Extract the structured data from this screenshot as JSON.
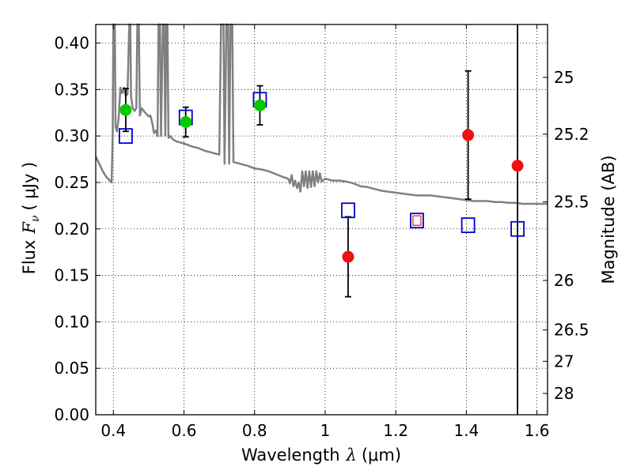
{
  "chart_data": {
    "type": "scatter",
    "xlabel": "Wavelength",
    "xlabel_symbol": "λ",
    "xlabel_unit": "(μm)",
    "ylabel": "Flux",
    "ylabel_symbol": "F",
    "ylabel_subscript": "ν",
    "ylabel_unit": "( μJy )",
    "y2label": "Magnitude (AB)",
    "xlim": [
      0.35,
      1.63
    ],
    "ylim": [
      0.0,
      0.42
    ],
    "grid": true,
    "grid_style": "dotted",
    "x_ticks": [
      0.4,
      0.6,
      0.8,
      1.0,
      1.2,
      1.4,
      1.6
    ],
    "x_tick_labels": [
      "0.4",
      "0.6",
      "0.8",
      "1",
      "1.2",
      "1.4",
      "1.6"
    ],
    "y_ticks": [
      0.0,
      0.05,
      0.1,
      0.15,
      0.2,
      0.25,
      0.3,
      0.35,
      0.4
    ],
    "y_tick_labels": [
      "0.00",
      "0.05",
      "0.10",
      "0.15",
      "0.20",
      "0.25",
      "0.30",
      "0.35",
      "0.40"
    ],
    "y2_ticks": [
      {
        "mag": 25,
        "label": "25"
      },
      {
        "mag": 25.2,
        "label": "25.2"
      },
      {
        "mag": 25.5,
        "label": "25.5"
      },
      {
        "mag": 26,
        "label": "26"
      },
      {
        "mag": 26.5,
        "label": "26.5"
      },
      {
        "mag": 27,
        "label": "27"
      },
      {
        "mag": 28,
        "label": "28"
      }
    ],
    "vertical_line_x": 1.545,
    "colors": {
      "model": "#808080",
      "model_points": "#0000cc",
      "optical_obs": "#00cc00",
      "ir_obs": "#ee1111",
      "errorbar": "#000000",
      "inner_square": "#ee1111"
    },
    "model_spectrum": [
      [
        0.35,
        0.278
      ],
      [
        0.36,
        0.27
      ],
      [
        0.37,
        0.262
      ],
      [
        0.38,
        0.256
      ],
      [
        0.39,
        0.252
      ],
      [
        0.395,
        0.25
      ],
      [
        0.398,
        0.3
      ],
      [
        0.4,
        0.42
      ],
      [
        0.404,
        0.42
      ],
      [
        0.406,
        0.31
      ],
      [
        0.41,
        0.305
      ],
      [
        0.415,
        0.32
      ],
      [
        0.42,
        0.352
      ],
      [
        0.425,
        0.346
      ],
      [
        0.43,
        0.352
      ],
      [
        0.435,
        0.343
      ],
      [
        0.44,
        0.345
      ],
      [
        0.445,
        0.42
      ],
      [
        0.448,
        0.42
      ],
      [
        0.45,
        0.342
      ],
      [
        0.455,
        0.33
      ],
      [
        0.46,
        0.327
      ],
      [
        0.465,
        0.33
      ],
      [
        0.468,
        0.42
      ],
      [
        0.472,
        0.42
      ],
      [
        0.475,
        0.322
      ],
      [
        0.48,
        0.33
      ],
      [
        0.49,
        0.325
      ],
      [
        0.5,
        0.321
      ],
      [
        0.505,
        0.322
      ],
      [
        0.51,
        0.314
      ],
      [
        0.515,
        0.303
      ],
      [
        0.52,
        0.306
      ],
      [
        0.525,
        0.3
      ],
      [
        0.528,
        0.42
      ],
      [
        0.532,
        0.42
      ],
      [
        0.535,
        0.3
      ],
      [
        0.54,
        0.42
      ],
      [
        0.544,
        0.42
      ],
      [
        0.547,
        0.3
      ],
      [
        0.55,
        0.42
      ],
      [
        0.553,
        0.42
      ],
      [
        0.556,
        0.298
      ],
      [
        0.56,
        0.3
      ],
      [
        0.57,
        0.296
      ],
      [
        0.58,
        0.294
      ],
      [
        0.6,
        0.292
      ],
      [
        0.62,
        0.289
      ],
      [
        0.64,
        0.287
      ],
      [
        0.66,
        0.284
      ],
      [
        0.68,
        0.282
      ],
      [
        0.7,
        0.28
      ],
      [
        0.705,
        0.42
      ],
      [
        0.712,
        0.42
      ],
      [
        0.715,
        0.27
      ],
      [
        0.72,
        0.42
      ],
      [
        0.725,
        0.42
      ],
      [
        0.728,
        0.27
      ],
      [
        0.732,
        0.42
      ],
      [
        0.737,
        0.42
      ],
      [
        0.74,
        0.272
      ],
      [
        0.76,
        0.27
      ],
      [
        0.78,
        0.268
      ],
      [
        0.8,
        0.265
      ],
      [
        0.82,
        0.264
      ],
      [
        0.84,
        0.262
      ],
      [
        0.86,
        0.259
      ],
      [
        0.88,
        0.256
      ],
      [
        0.895,
        0.254
      ],
      [
        0.9,
        0.249
      ],
      [
        0.905,
        0.258
      ],
      [
        0.91,
        0.246
      ],
      [
        0.915,
        0.252
      ],
      [
        0.92,
        0.244
      ],
      [
        0.925,
        0.25
      ],
      [
        0.93,
        0.24
      ],
      [
        0.935,
        0.262
      ],
      [
        0.94,
        0.246
      ],
      [
        0.945,
        0.262
      ],
      [
        0.95,
        0.244
      ],
      [
        0.955,
        0.262
      ],
      [
        0.96,
        0.245
      ],
      [
        0.965,
        0.262
      ],
      [
        0.97,
        0.246
      ],
      [
        0.975,
        0.262
      ],
      [
        0.98,
        0.25
      ],
      [
        0.985,
        0.26
      ],
      [
        0.99,
        0.251
      ],
      [
        1.0,
        0.254
      ],
      [
        1.02,
        0.252
      ],
      [
        1.04,
        0.252
      ],
      [
        1.06,
        0.251
      ],
      [
        1.08,
        0.249
      ],
      [
        1.1,
        0.246
      ],
      [
        1.12,
        0.245
      ],
      [
        1.14,
        0.243
      ],
      [
        1.16,
        0.241
      ],
      [
        1.18,
        0.24
      ],
      [
        1.2,
        0.239
      ],
      [
        1.22,
        0.238
      ],
      [
        1.24,
        0.237
      ],
      [
        1.26,
        0.236
      ],
      [
        1.28,
        0.236
      ],
      [
        1.3,
        0.236
      ],
      [
        1.32,
        0.235
      ],
      [
        1.34,
        0.234
      ],
      [
        1.36,
        0.233
      ],
      [
        1.38,
        0.232
      ],
      [
        1.4,
        0.231
      ],
      [
        1.42,
        0.23
      ],
      [
        1.44,
        0.23
      ],
      [
        1.46,
        0.23
      ],
      [
        1.48,
        0.229
      ],
      [
        1.5,
        0.229
      ],
      [
        1.52,
        0.228
      ],
      [
        1.54,
        0.228
      ],
      [
        1.56,
        0.227
      ],
      [
        1.58,
        0.227
      ],
      [
        1.6,
        0.227
      ],
      [
        1.63,
        0.227
      ]
    ],
    "model_points": [
      {
        "x": 0.435,
        "y": 0.3
      },
      {
        "x": 0.605,
        "y": 0.32
      },
      {
        "x": 0.815,
        "y": 0.339
      },
      {
        "x": 1.065,
        "y": 0.22
      },
      {
        "x": 1.26,
        "y": 0.209
      },
      {
        "x": 1.405,
        "y": 0.204
      },
      {
        "x": 1.545,
        "y": 0.2
      }
    ],
    "observed_optical": [
      {
        "x": 0.435,
        "y": 0.328,
        "err": 0.023
      },
      {
        "x": 0.605,
        "y": 0.315,
        "err": 0.016
      },
      {
        "x": 0.815,
        "y": 0.333,
        "err": 0.021
      }
    ],
    "observed_ir": [
      {
        "x": 1.065,
        "y": 0.17,
        "err": 0.043
      },
      {
        "x": 1.405,
        "y": 0.301,
        "err": 0.069
      },
      {
        "x": 1.545,
        "y": 0.268,
        "err": null
      }
    ],
    "inner_square_points": [
      {
        "x": 1.26,
        "y": 0.209
      }
    ]
  }
}
